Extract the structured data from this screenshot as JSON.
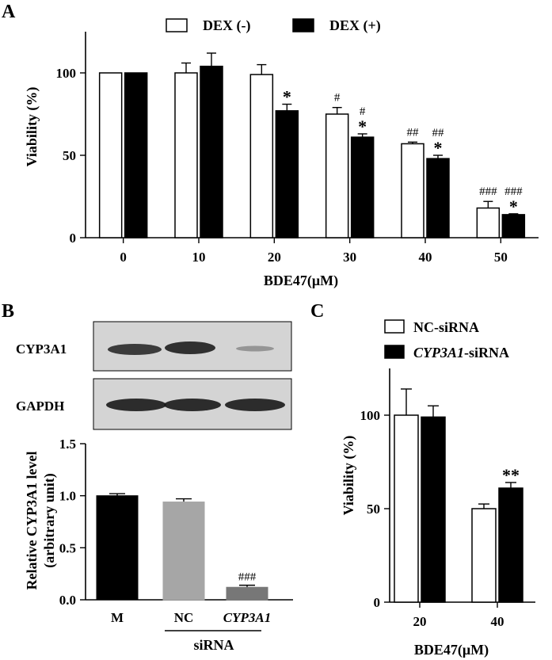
{
  "colors": {
    "white_bar": "#ffffff",
    "black_bar": "#000000",
    "gray_bar": "#a6a6a6",
    "dark_gray_bar": "#777777",
    "blot_bg": "#d9d9d9"
  },
  "chart_data": [
    {
      "panel": "A",
      "type": "bar",
      "xlabel": "BDE47(μM)",
      "ylabel": "Viability (%)",
      "categories": [
        "0",
        "10",
        "20",
        "30",
        "40",
        "50"
      ],
      "ylim": [
        0,
        125
      ],
      "yticks": [
        0,
        50,
        100
      ],
      "legend_position": "top-center",
      "series": [
        {
          "name": "DEX (-)",
          "color": "#ffffff",
          "values": [
            100,
            100,
            99,
            75,
            57,
            18
          ],
          "errors": [
            0,
            6,
            6,
            4,
            1,
            4
          ],
          "annotations": [
            "",
            "",
            "",
            "#",
            "##",
            "###"
          ]
        },
        {
          "name": "DEX (+)",
          "color": "#000000",
          "values": [
            100,
            104,
            77,
            61,
            48,
            14
          ],
          "errors": [
            0,
            8,
            4,
            2,
            2,
            0.5
          ],
          "annotations": [
            "",
            "",
            "*",
            "#\n*",
            "##\n*",
            "###\n*"
          ]
        }
      ]
    },
    {
      "panel": "B",
      "type": "bar",
      "blot_labels": [
        "CYP3A1",
        "GAPDH"
      ],
      "ylabel_lines": [
        "Relative CYP3A1 level",
        "(arbitrary unit)"
      ],
      "categories": [
        "M",
        "NC",
        "CYP3A1"
      ],
      "group_label": "siRNA",
      "ylim": [
        0,
        1.5
      ],
      "yticks": [
        "0.0",
        "0.5",
        "1.0",
        "1.5"
      ],
      "values": [
        1.0,
        0.94,
        0.12
      ],
      "errors": [
        0.02,
        0.03,
        0.02
      ],
      "colors": [
        "#000000",
        "#a6a6a6",
        "#777777"
      ],
      "annotations": [
        "",
        "",
        "###"
      ]
    },
    {
      "panel": "C",
      "type": "bar",
      "xlabel": "BDE47(μM)",
      "ylabel": "Viability (%)",
      "categories": [
        "20",
        "40"
      ],
      "ylim": [
        0,
        125
      ],
      "yticks": [
        0,
        50,
        100
      ],
      "legend_position": "top",
      "series": [
        {
          "name": "NC-siRNA",
          "name_italic": "",
          "name_rest": "NC-siRNA",
          "color": "#ffffff",
          "values": [
            100,
            50
          ],
          "errors": [
            14,
            2.5
          ],
          "annotations": [
            "",
            ""
          ]
        },
        {
          "name": "CYP3A1-siRNA",
          "name_italic": "CYP3A1",
          "name_rest": "-siRNA",
          "color": "#000000",
          "values": [
            99,
            61
          ],
          "errors": [
            6,
            3
          ],
          "annotations": [
            "",
            "**"
          ]
        }
      ]
    }
  ]
}
